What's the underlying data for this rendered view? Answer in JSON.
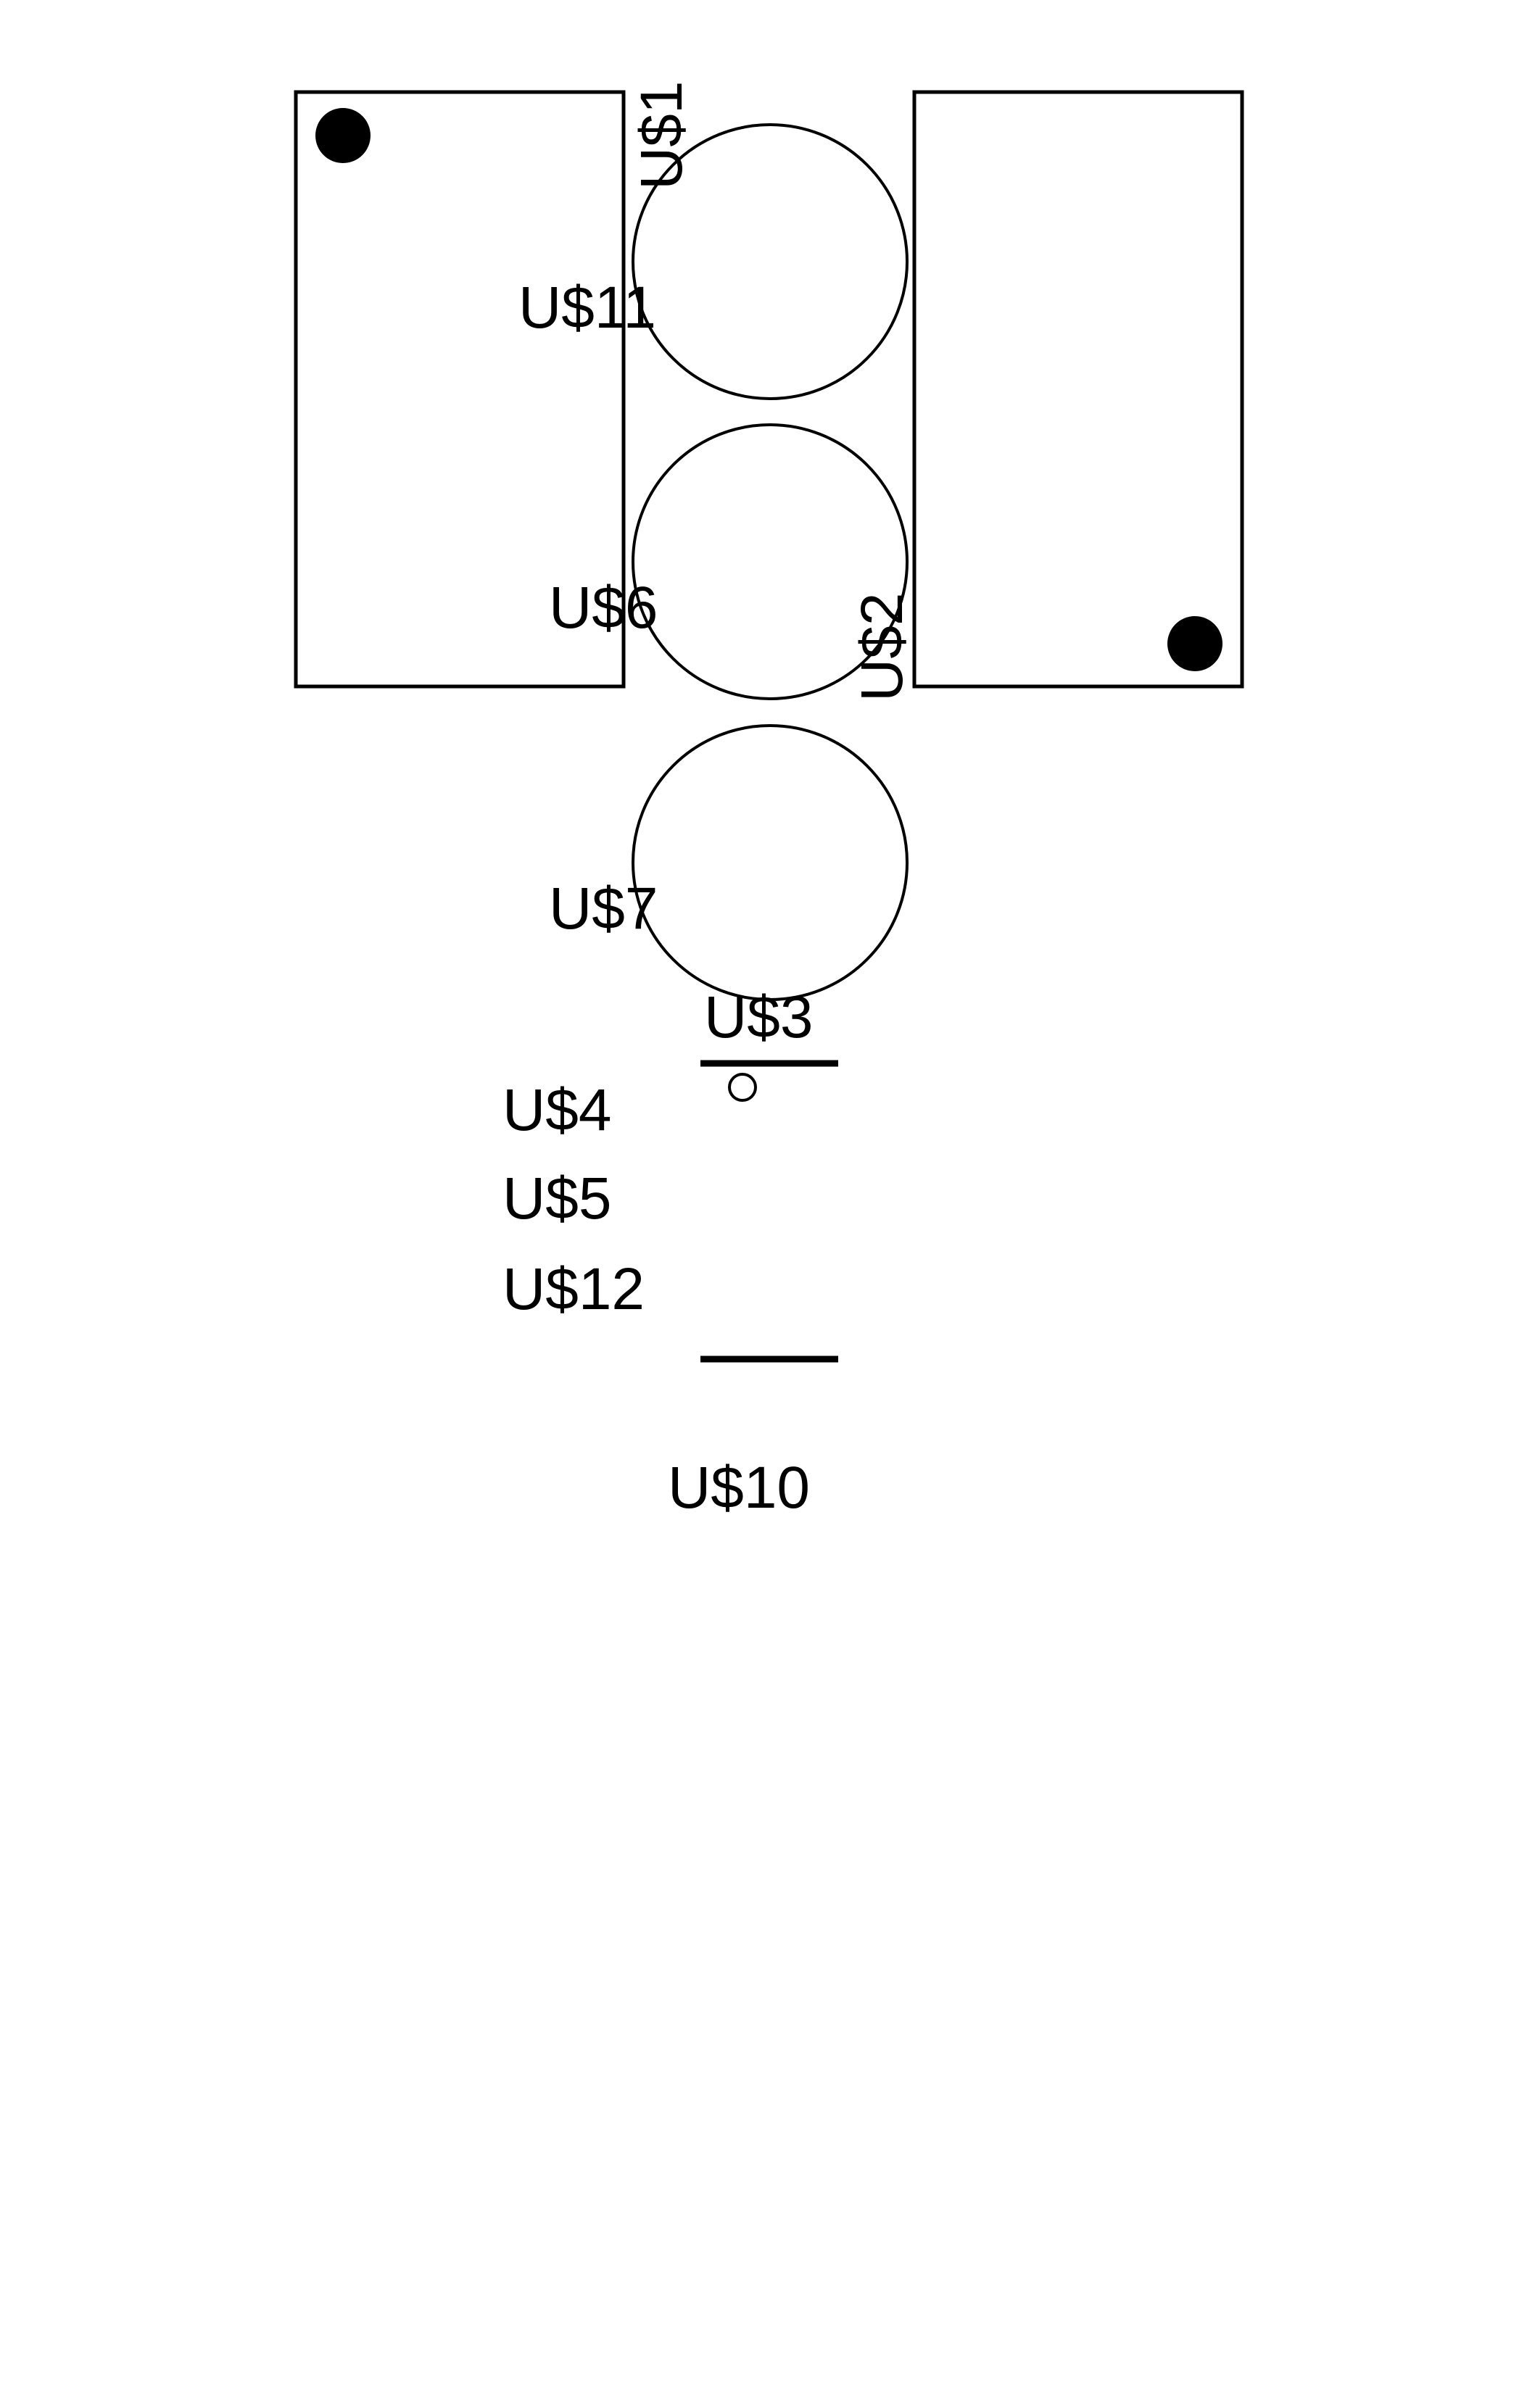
{
  "labels": {
    "us1": "U$1",
    "us2": "U$2",
    "us3": "U$3",
    "us4": "U$4",
    "us5": "U$5",
    "us6": "U$6",
    "us7": "U$7",
    "us10": "U$10",
    "us11": "U$11",
    "us12": "U$12"
  },
  "colors": {
    "background": "#ffffff",
    "ink": "#000000"
  }
}
